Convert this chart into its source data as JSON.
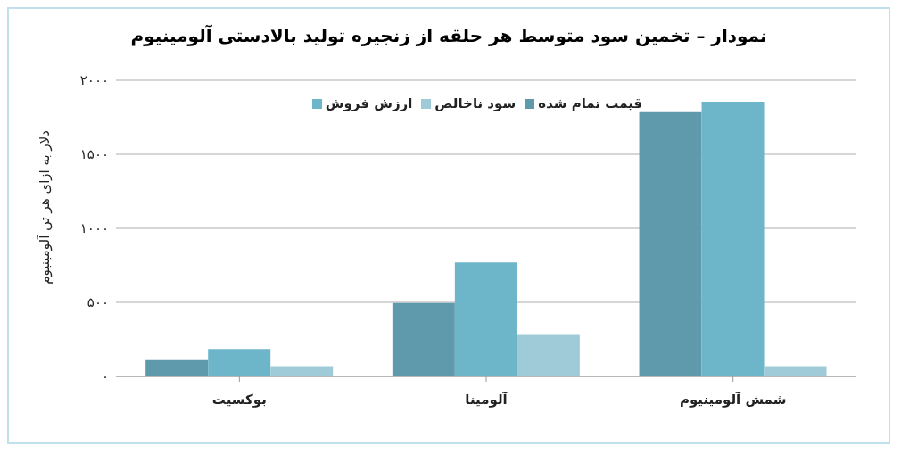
{
  "chart_data": {
    "type": "bar",
    "title": "نمودار – تخمین سود متوسط هر حلقه از زنجیره تولید بالادستی آلومینیوم",
    "ylabel": "دلار به ازای هر تن آلومینیوم",
    "categories": [
      "بوکسیت",
      "آلومینا",
      "شمش آلومینیوم"
    ],
    "series": [
      {
        "name": "قیمت تمام شده",
        "color": "#5e9aab",
        "values": [
          110,
          495,
          1785
        ]
      },
      {
        "name": "ارزش فروش",
        "color": "#6db5c8",
        "values": [
          185,
          770,
          1855
        ]
      },
      {
        "name": "سود ناخالص",
        "color": "#9fcbd8",
        "values": [
          70,
          280,
          70
        ]
      }
    ],
    "ylim": [
      0,
      2000
    ],
    "yticks": [
      {
        "value": 0,
        "label": "۰"
      },
      {
        "value": 500,
        "label": "۵۰۰"
      },
      {
        "value": 1000,
        "label": "۱۰۰۰"
      },
      {
        "value": 1500,
        "label": "۱۵۰۰"
      },
      {
        "value": 2000,
        "label": "۲۰۰۰"
      }
    ],
    "grid": "y",
    "legend": "top"
  }
}
